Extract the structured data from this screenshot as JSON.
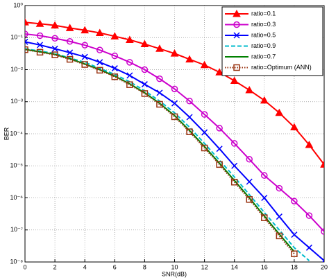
{
  "chart_data": {
    "type": "line",
    "yscale": "log",
    "grid": true,
    "legend": "upper right",
    "xlabel": "SNR(dB)",
    "ylabel": "BER",
    "x": [
      0,
      1,
      2,
      3,
      4,
      5,
      6,
      7,
      8,
      9,
      10,
      11,
      12,
      13,
      14,
      15,
      16,
      17,
      18,
      19,
      20
    ],
    "xlim": [
      0,
      20
    ],
    "xticks": [
      0,
      2,
      4,
      6,
      8,
      10,
      12,
      14,
      16,
      18,
      20
    ],
    "ylim": [
      1e-08,
      1
    ],
    "yticks": [
      {
        "value": 1e-08,
        "label": "10⁻⁸"
      },
      {
        "value": 1e-07,
        "label": "10⁻⁷"
      },
      {
        "value": 1e-06,
        "label": "10⁻⁶"
      },
      {
        "value": 1e-05,
        "label": "10⁻⁵"
      },
      {
        "value": 0.0001,
        "label": "10⁻⁴"
      },
      {
        "value": 0.001,
        "label": "10⁻³"
      },
      {
        "value": 0.01,
        "label": "10⁻²"
      },
      {
        "value": 0.1,
        "label": "10⁻¹"
      },
      {
        "value": 1,
        "label": "10⁰"
      }
    ],
    "series": [
      {
        "name": "ratio=0.1",
        "color": "#ff0000",
        "marker": "triangle",
        "dash": "solid",
        "values": [
          0.3,
          0.27,
          0.24,
          0.2,
          0.17,
          0.14,
          0.11,
          0.085,
          0.063,
          0.045,
          0.032,
          0.021,
          0.014,
          0.0083,
          0.0045,
          0.0023,
          0.0011,
          0.00045,
          0.00016,
          4.5e-05,
          1.1e-05
        ]
      },
      {
        "name": "ratio=0.3",
        "color": "#cc00cc",
        "marker": "circle",
        "dash": "solid",
        "values": [
          0.13,
          0.115,
          0.095,
          0.076,
          0.058,
          0.041,
          0.027,
          0.017,
          0.01,
          0.0052,
          0.0025,
          0.00105,
          0.0004,
          0.00015,
          5e-05,
          1.6e-05,
          5e-06,
          2e-06,
          7.9e-07,
          2.8e-07,
          8.9e-08
        ]
      },
      {
        "name": "ratio=0.5",
        "color": "#0000ff",
        "marker": "x",
        "dash": "solid",
        "values": [
          0.074,
          0.059,
          0.045,
          0.034,
          0.025,
          0.017,
          0.011,
          0.0066,
          0.0035,
          0.0019,
          0.00089,
          0.00033,
          0.00011,
          3.4e-05,
          1e-05,
          3.2e-06,
          1e-06,
          2.6e-07,
          7.1e-08,
          2.8e-08,
          1.1e-08
        ]
      },
      {
        "name": "ratio=0.9",
        "color": "#00bbcc",
        "marker": "none",
        "dash": "dashed",
        "values": [
          0.045,
          0.038,
          0.032,
          0.023,
          0.017,
          0.011,
          0.0071,
          0.0042,
          0.0022,
          0.00105,
          0.00045,
          0.00016,
          5e-05,
          1.5e-05,
          4.5e-06,
          1.26e-06,
          3.5e-07,
          1e-07,
          2.8e-08,
          1.1e-08,
          null
        ]
      },
      {
        "name": "ratio=0.7",
        "color": "#008000",
        "marker": "none",
        "dash": "solid",
        "values": [
          0.043,
          0.036,
          0.03,
          0.022,
          0.015,
          0.01,
          0.0063,
          0.0036,
          0.0019,
          0.00089,
          0.00037,
          0.000126,
          4e-05,
          1.2e-05,
          3.5e-06,
          1e-06,
          2.7e-07,
          7.4e-08,
          2.1e-08,
          null,
          null
        ]
      },
      {
        "name": "ratio=Optimum (ANN)",
        "color": "#993311",
        "marker": "square",
        "dash": "dotted",
        "values": [
          0.042,
          0.035,
          0.029,
          0.021,
          0.0145,
          0.0096,
          0.006,
          0.0034,
          0.0018,
          0.00083,
          0.00034,
          0.000115,
          3.6e-05,
          1.1e-05,
          3.1e-06,
          8.9e-07,
          2.4e-07,
          6.5e-08,
          1.8e-08,
          null,
          null
        ]
      }
    ]
  }
}
